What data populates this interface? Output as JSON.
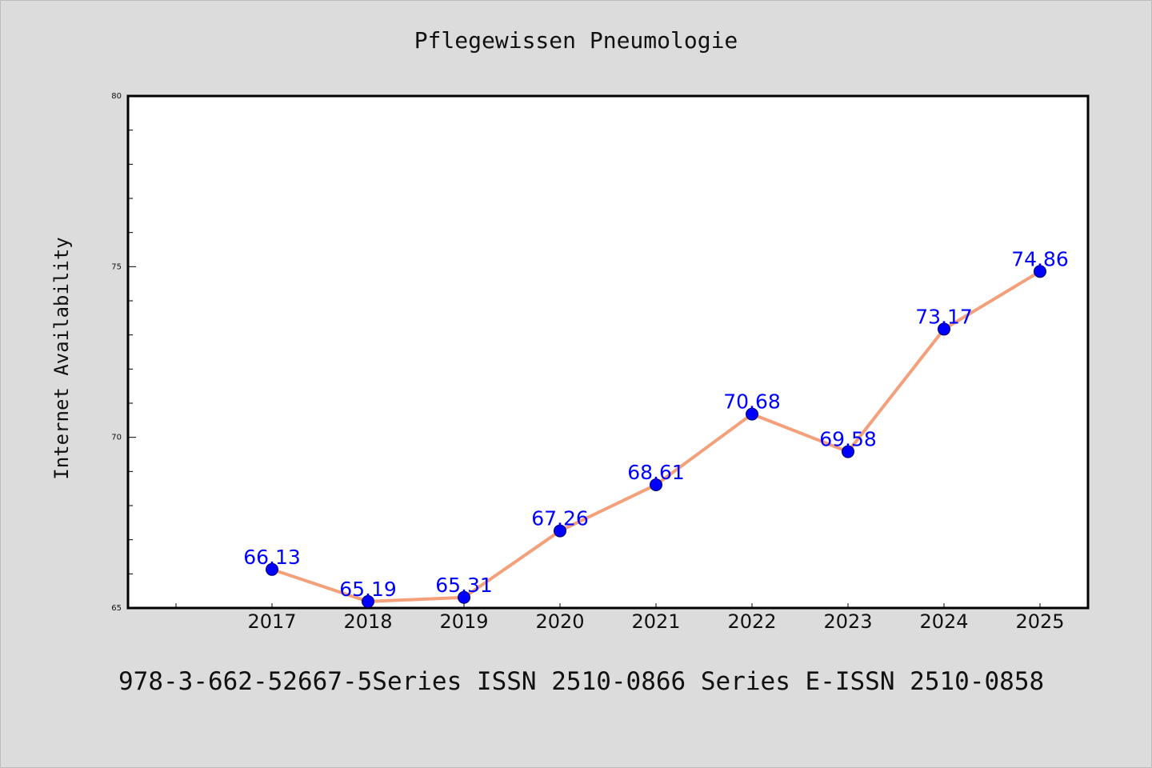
{
  "chart_data": {
    "type": "line",
    "title": "Pflegewissen Pneumologie",
    "xlabel": "",
    "ylabel": "Internet Availability",
    "categories": [
      "2017",
      "2018",
      "2019",
      "2020",
      "2021",
      "2022",
      "2023",
      "2024",
      "2025"
    ],
    "series": [
      {
        "values": [
          66.13,
          65.19,
          65.31,
          67.26,
          68.61,
          70.68,
          69.58,
          73.17,
          74.86
        ],
        "labels": [
          "66.13",
          "65.19",
          "65.31",
          "67.26",
          "68.61",
          "70.68",
          "69.58",
          "73.17",
          "74.86"
        ]
      }
    ],
    "ylim": [
      65,
      80
    ],
    "yticks": [
      "65",
      "70",
      "75",
      "80"
    ],
    "grid": false,
    "line_color": "#f4a07a",
    "marker_color": "#0000ff",
    "label_color": "#0000ff"
  },
  "footer": {
    "text": "978-3-662-52667-5Series ISSN 2510-0866 Series E-ISSN 2510-0858"
  }
}
